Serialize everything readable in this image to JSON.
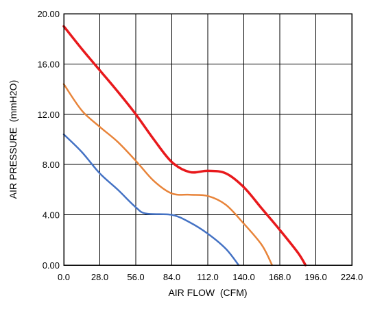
{
  "chart_data": {
    "type": "line",
    "title": "",
    "xlabel": "AIR FLOW  (CFM)",
    "ylabel": "AIR PRESSURE  (mmH2O)",
    "xlim": [
      0,
      224
    ],
    "ylim": [
      0,
      20
    ],
    "x_ticks": [
      "0.0",
      "28.0",
      "56.0",
      "84.0",
      "112.0",
      "140.0",
      "168.0",
      "196.0",
      "224.0"
    ],
    "y_ticks": [
      "0.00",
      "4.00",
      "8.00",
      "12.00",
      "16.00",
      "20.00"
    ],
    "grid": true,
    "legend": "none",
    "series": [
      {
        "color": "#e8191c",
        "stroke_width": 3.5,
        "points": [
          [
            0,
            19.0
          ],
          [
            14,
            17.2
          ],
          [
            28,
            15.5
          ],
          [
            42,
            13.8
          ],
          [
            56,
            12.0
          ],
          [
            70,
            10.0
          ],
          [
            84,
            8.2
          ],
          [
            98,
            7.4
          ],
          [
            112,
            7.5
          ],
          [
            126,
            7.3
          ],
          [
            140,
            6.2
          ],
          [
            154,
            4.5
          ],
          [
            168,
            2.8
          ],
          [
            182,
            1.0
          ],
          [
            188,
            0.0
          ]
        ]
      },
      {
        "color": "#e8843a",
        "stroke_width": 2.5,
        "points": [
          [
            0,
            14.4
          ],
          [
            14,
            12.3
          ],
          [
            28,
            11.0
          ],
          [
            42,
            9.8
          ],
          [
            56,
            8.3
          ],
          [
            70,
            6.7
          ],
          [
            84,
            5.7
          ],
          [
            98,
            5.6
          ],
          [
            112,
            5.5
          ],
          [
            126,
            4.8
          ],
          [
            140,
            3.3
          ],
          [
            154,
            1.6
          ],
          [
            162,
            0.0
          ]
        ]
      },
      {
        "color": "#4472c4",
        "stroke_width": 2.5,
        "points": [
          [
            0,
            10.4
          ],
          [
            14,
            9.0
          ],
          [
            28,
            7.3
          ],
          [
            42,
            6.0
          ],
          [
            56,
            4.6
          ],
          [
            64,
            4.1
          ],
          [
            84,
            4.0
          ],
          [
            98,
            3.4
          ],
          [
            112,
            2.5
          ],
          [
            126,
            1.3
          ],
          [
            136,
            0.0
          ]
        ]
      }
    ]
  }
}
